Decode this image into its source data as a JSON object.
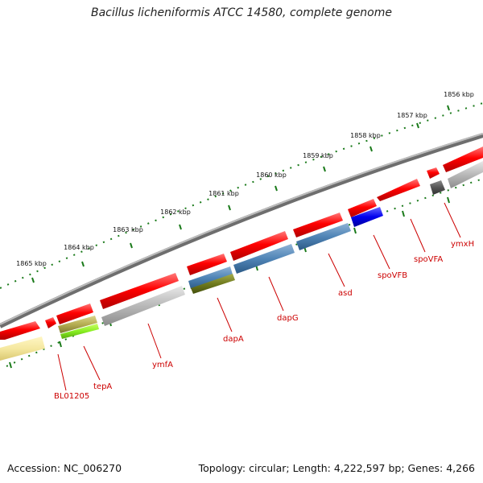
{
  "title": "Bacillus licheniformis ATCC 14580, complete genome",
  "accession": "Accession: NC_006270",
  "summary": "Topology: circular; Length: 4,222,597 bp; Genes: 4,266",
  "scale": {
    "ticks": [
      {
        "label": "1856 kbp"
      },
      {
        "label": "1857 kbp"
      },
      {
        "label": "1858 kbp"
      },
      {
        "label": "1859 kbp"
      },
      {
        "label": "1860 kbp"
      },
      {
        "label": "1861 kbp"
      },
      {
        "label": "1862 kbp"
      },
      {
        "label": "1863 kbp"
      },
      {
        "label": "1864 kbp"
      },
      {
        "label": "1865 kbp"
      }
    ]
  },
  "genes": [
    {
      "label": "BL01205"
    },
    {
      "label": "tepA"
    },
    {
      "label": "ymfA"
    },
    {
      "label": "dapA"
    },
    {
      "label": "dapG"
    },
    {
      "label": "asd"
    },
    {
      "label": "spoVFB"
    },
    {
      "label": "spoVFA"
    },
    {
      "label": "ymxH"
    }
  ],
  "colors": {
    "backbone": "#8a8a8a",
    "cds": "#ff0000",
    "tick": "#1a7a1a",
    "label": "#cc0000"
  }
}
